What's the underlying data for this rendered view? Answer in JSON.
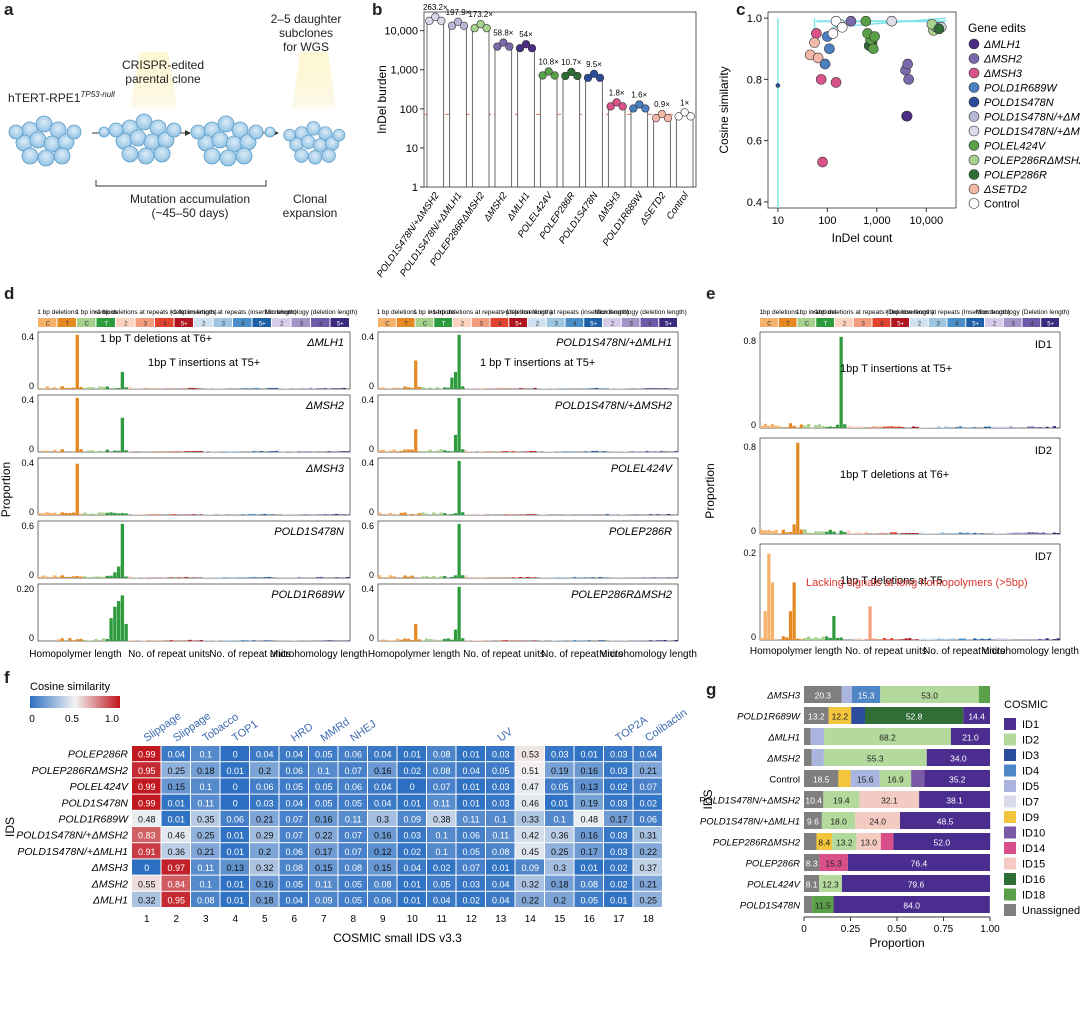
{
  "panels": {
    "a": "a",
    "b": "b",
    "c": "c",
    "d": "d",
    "e": "e",
    "f": "f",
    "g": "g"
  },
  "panel_a": {
    "cell_line": "hTERT-RPE1",
    "cell_line_sup": "TP53-null",
    "parental": [
      "CRISPR-edited",
      "parental clone"
    ],
    "subclones": [
      "2–5 daughter",
      "subclones",
      "for WGS"
    ],
    "accum": [
      "Mutation accumulation",
      "(~45–50 days)"
    ],
    "clonal": [
      "Clonal",
      "expansion"
    ]
  },
  "panel_b": {
    "ylabel": "InDel burden",
    "yticks": [
      "1",
      "10",
      "100",
      "1,000",
      "10,000"
    ],
    "bars": [
      {
        "label": "POLD1S478N/+ΔMSH2",
        "fold": "263.2×",
        "value": 20000,
        "color": "#d8d8e8"
      },
      {
        "label": "POLD1S478N/+ΔMLH1",
        "fold": "197.9×",
        "value": 15000,
        "color": "#b9b7d6"
      },
      {
        "label": "POLEP286RΔMSH2",
        "fold": "173.2×",
        "value": 13000,
        "color": "#a9d18e"
      },
      {
        "label": "ΔMSH2",
        "fold": "58.8×",
        "value": 4400,
        "color": "#7a6aac"
      },
      {
        "label": "ΔMLH1",
        "fold": "54×",
        "value": 4000,
        "color": "#4b2c84"
      },
      {
        "label": "POLEL424V",
        "fold": "10.8×",
        "value": 800,
        "color": "#5aa048"
      },
      {
        "label": "POLEP286R",
        "fold": "10.7×",
        "value": 780,
        "color": "#2f6f36"
      },
      {
        "label": "POLD1S478N",
        "fold": "9.5×",
        "value": 700,
        "color": "#2b4c9a"
      },
      {
        "label": "ΔMSH3",
        "fold": "1.8×",
        "value": 130,
        "color": "#d9538a"
      },
      {
        "label": "POLD1R689W",
        "fold": "1.6×",
        "value": 115,
        "color": "#4a7fc1"
      },
      {
        "label": "ΔSETD2",
        "fold": "0.9×",
        "value": 65,
        "color": "#f4b8a8"
      },
      {
        "label": "Control",
        "fold": "1×",
        "value": 72,
        "color": "#ffffff"
      }
    ]
  },
  "panel_c": {
    "ylabel": "Cosine similarity",
    "xlabel": "InDel count",
    "yticks": [
      "0.4",
      "0.6",
      "0.8",
      "1.0"
    ],
    "xticks": [
      "10",
      "100",
      "1,000",
      "10,000"
    ],
    "legend_title": "Gene edits",
    "legend": [
      {
        "label": "ΔMLH1",
        "color": "#4b2c84"
      },
      {
        "label": "ΔMSH2",
        "color": "#7a6aac"
      },
      {
        "label": "ΔMSH3",
        "color": "#d9538a"
      },
      {
        "label": "POLD1R689W",
        "color": "#4a7fc1"
      },
      {
        "label": "POLD1S478N",
        "color": "#2b4c9a"
      },
      {
        "label": "POLD1S478N/+ΔMLH1",
        "color": "#b9b7d6"
      },
      {
        "label": "POLD1S478N/+ΔMSH2",
        "color": "#dcdcea"
      },
      {
        "label": "POLEL424V",
        "color": "#5aa048"
      },
      {
        "label": "POLEP286RΔMSH2",
        "color": "#a9d18e"
      },
      {
        "label": "POLEP286R",
        "color": "#2f6f36"
      },
      {
        "label": "ΔSETD2",
        "color": "#f4b8a8"
      },
      {
        "label": "Control",
        "color": "#ffffff"
      }
    ]
  },
  "panel_d": {
    "headers": [
      "1 bp deletions",
      "1 bp insertions",
      ">1 bp deletions at repeats (deletion length)",
      ">1 bp insertions at repeats (insertion length)",
      "Microhomology (deletion length)"
    ],
    "ylabel": "Proportion",
    "xlabels": [
      "Homopolymer length",
      "No. of repeat units",
      "No. of repeat units",
      "Microhomology length"
    ],
    "left": [
      {
        "title": "ΔMLH1",
        "ymax": "0.4",
        "ann1": "1 bp T deletions at T6+",
        "ann2": "1bp T insertions at T5+"
      },
      {
        "title": "ΔMSH2",
        "ymax": "0.4"
      },
      {
        "title": "ΔMSH3",
        "ymax": "0.4"
      },
      {
        "title": "POLD1S478N",
        "ymax": "0.6"
      },
      {
        "title": "POLD1R689W",
        "ymax": "0.20"
      }
    ],
    "right": [
      {
        "title": "POLD1S478N/+ΔMLH1",
        "ymax": "0.4",
        "ann": "1 bp T insertions at T5+"
      },
      {
        "title": "POLD1S478N/+ΔMSH2",
        "ymax": "0.4"
      },
      {
        "title": "POLEL424V",
        "ymax": "0.4"
      },
      {
        "title": "POLEP286R",
        "ymax": "0.6"
      },
      {
        "title": "POLEP286RΔMSH2",
        "ymax": "0.4"
      }
    ]
  },
  "panel_e": {
    "headers": [
      "1bp deletions",
      "1bp insertions",
      ">1bp deletions at repeats (Deletion length)",
      ">1bp insertions at repeats (Insertion length)",
      "Microhomology (Deletion length)"
    ],
    "ylabel": "Proportion",
    "rows": [
      {
        "title": "ID1",
        "ymax": "0.8",
        "ann": "1bp T insertions at T5+"
      },
      {
        "title": "ID2",
        "ymax": "0.8",
        "ann": "1bp T deletions at T6+"
      },
      {
        "title": "ID7",
        "ymax": "0.2",
        "ann": "1bp T deletions at T5",
        "ann_red": "Lacking signals at long homopolymers (>5bp)"
      }
    ],
    "xlabels": [
      "Homopolymer length",
      "No. of repeat units",
      "No. of repeat units",
      "Microhomology length"
    ]
  },
  "panel_f": {
    "legend_title": "Cosine similarity",
    "legend_ticks": [
      "0",
      "0.5",
      "1.0"
    ],
    "ylabel": "IDS",
    "xlabel": "COSMIC small IDS v3.3",
    "top_labels": [
      {
        "label": "Slippage",
        "col": 1
      },
      {
        "label": "Slippage",
        "col": 2
      },
      {
        "label": "Tobacco",
        "col": 3
      },
      {
        "label": "TOP1",
        "col": 4
      },
      {
        "label": "HRD",
        "col": 6
      },
      {
        "label": "MMRd",
        "col": 7
      },
      {
        "label": "NHEJ",
        "col": 8
      },
      {
        "label": "UV",
        "col": 13
      },
      {
        "label": "TOP2A",
        "col": 17
      },
      {
        "label": "Colibactin",
        "col": 18
      }
    ],
    "rows": [
      {
        "label": "POLEP286R",
        "values": [
          0.99,
          0.04,
          0.1,
          0,
          0.04,
          0.04,
          0.05,
          0.06,
          0.04,
          0.01,
          0.08,
          0.01,
          0.03,
          0.53,
          0.03,
          0.01,
          0.03,
          0.04
        ]
      },
      {
        "label": "POLEP286RΔMSH2",
        "values": [
          0.95,
          0.25,
          0.18,
          0.01,
          0.2,
          0.06,
          0.1,
          0.07,
          0.16,
          0.02,
          0.08,
          0.04,
          0.05,
          0.51,
          0.19,
          0.16,
          0.03,
          0.21
        ]
      },
      {
        "label": "POLEL424V",
        "values": [
          0.99,
          0.15,
          0.1,
          0,
          0.06,
          0.05,
          0.05,
          0.06,
          0.04,
          0,
          0.07,
          0.01,
          0.03,
          0.47,
          0.05,
          0.13,
          0.02,
          0.07
        ]
      },
      {
        "label": "POLD1S478N",
        "values": [
          0.99,
          0.01,
          0.11,
          0,
          0.03,
          0.04,
          0.05,
          0.05,
          0.04,
          0.01,
          0.11,
          0.01,
          0.03,
          0.46,
          0.01,
          0.19,
          0.03,
          0.02
        ]
      },
      {
        "label": "POLD1R689W",
        "values": [
          0.48,
          0.01,
          0.35,
          0.06,
          0.21,
          0.07,
          0.16,
          0.11,
          0.3,
          0.09,
          0.38,
          0.11,
          0.1,
          0.33,
          0.1,
          0.48,
          0.17,
          0.06
        ]
      },
      {
        "label": "POLD1S478N/+ΔMSH2",
        "values": [
          0.83,
          0.46,
          0.25,
          0.01,
          0.29,
          0.07,
          0.22,
          0.07,
          0.16,
          0.03,
          0.1,
          0.06,
          0.11,
          0.42,
          0.36,
          0.16,
          0.03,
          0.31
        ]
      },
      {
        "label": "POLD1S478N/+ΔMLH1",
        "values": [
          0.91,
          0.36,
          0.21,
          0.01,
          0.2,
          0.06,
          0.17,
          0.07,
          0.12,
          0.02,
          0.1,
          0.05,
          0.08,
          0.45,
          0.25,
          0.17,
          0.03,
          0.22
        ]
      },
      {
        "label": "ΔMSH3",
        "values": [
          0,
          0.97,
          0.11,
          0.13,
          0.32,
          0.08,
          0.15,
          0.08,
          0.15,
          0.04,
          0.02,
          0.07,
          0.01,
          0.09,
          0.3,
          0.01,
          0.02,
          0.37
        ]
      },
      {
        "label": "ΔMSH2",
        "values": [
          0.55,
          0.84,
          0.1,
          0.01,
          0.16,
          0.05,
          0.11,
          0.05,
          0.08,
          0.01,
          0.05,
          0.03,
          0.04,
          0.32,
          0.18,
          0.08,
          0.02,
          0.21
        ]
      },
      {
        "label": "ΔMLH1",
        "values": [
          0.32,
          0.95,
          0.08,
          0.01,
          0.18,
          0.04,
          0.09,
          0.05,
          0.06,
          0.01,
          0.04,
          0.02,
          0.04,
          0.22,
          0.2,
          0.05,
          0.01,
          0.25
        ]
      }
    ],
    "xticks": [
      "1",
      "2",
      "3",
      "4",
      "5",
      "6",
      "7",
      "8",
      "9",
      "10",
      "11",
      "12",
      "13",
      "14",
      "15",
      "16",
      "17",
      "18"
    ]
  },
  "panel_g": {
    "ylabel": "IDS",
    "xlabel": "Proportion",
    "xticks": [
      "0",
      "0.25",
      "0.50",
      "0.75",
      "1.00"
    ],
    "legend_title": "COSMIC",
    "legend": [
      {
        "label": "ID1",
        "color": "#4b2c8f"
      },
      {
        "label": "ID2",
        "color": "#b3d99c"
      },
      {
        "label": "ID3",
        "color": "#2b4c9a"
      },
      {
        "label": "ID4",
        "color": "#4f86c6"
      },
      {
        "label": "ID5",
        "color": "#a9b4df"
      },
      {
        "label": "ID7",
        "color": "#d9dbeb"
      },
      {
        "label": "ID9",
        "color": "#f2c53d"
      },
      {
        "label": "ID10",
        "color": "#7a5aa6"
      },
      {
        "label": "ID14",
        "color": "#d94f8a"
      },
      {
        "label": "ID15",
        "color": "#f4cbc3"
      },
      {
        "label": "ID16",
        "color": "#2f6f36"
      },
      {
        "label": "ID18",
        "color": "#5aa048"
      },
      {
        "label": "Unassigned",
        "color": "#7f7f7f"
      }
    ],
    "rows": [
      {
        "label": "ΔMSH3",
        "segs": [
          {
            "id": "Unassigned",
            "v": 0.203,
            "t": "20.3"
          },
          {
            "id": "ID5",
            "v": 0.054,
            "t": "5.4"
          },
          {
            "id": "ID4",
            "v": 0.153,
            "t": "15.3"
          },
          {
            "id": "ID2",
            "v": 0.53,
            "t": "53.0"
          },
          {
            "id": "ID18",
            "v": 0.06,
            "t": "6.0"
          }
        ]
      },
      {
        "label": "POLD1R689W",
        "segs": [
          {
            "id": "Unassigned",
            "v": 0.132,
            "t": "13.2"
          },
          {
            "id": "ID9",
            "v": 0.122,
            "t": "12.2"
          },
          {
            "id": "ID3",
            "v": 0.074,
            "t": "7.4"
          },
          {
            "id": "ID16",
            "v": 0.528,
            "t": "52.8"
          },
          {
            "id": "ID1",
            "v": 0.144,
            "t": "14.4"
          }
        ]
      },
      {
        "label": "ΔMLH1",
        "segs": [
          {
            "id": "Unassigned",
            "v": 0.036,
            "t": "3.6"
          },
          {
            "id": "ID5",
            "v": 0.072,
            "t": "7.2"
          },
          {
            "id": "ID2",
            "v": 0.682,
            "t": "68.2"
          },
          {
            "id": "ID1",
            "v": 0.21,
            "t": "21.0"
          }
        ]
      },
      {
        "label": "ΔMSH2",
        "segs": [
          {
            "id": "Unassigned",
            "v": 0.042,
            "t": "4.2"
          },
          {
            "id": "ID5",
            "v": 0.065,
            "t": "6.5"
          },
          {
            "id": "ID2",
            "v": 0.553,
            "t": "55.3"
          },
          {
            "id": "ID1",
            "v": 0.34,
            "t": "34.0"
          }
        ]
      },
      {
        "label": "Control",
        "segs": [
          {
            "id": "Unassigned",
            "v": 0.185,
            "t": "18.5"
          },
          {
            "id": "ID9",
            "v": 0.066,
            "t": "6.6"
          },
          {
            "id": "ID5",
            "v": 0.156,
            "t": "15.6"
          },
          {
            "id": "ID2",
            "v": 0.169,
            "t": "16.9"
          },
          {
            "id": "ID10",
            "v": 0.072,
            "t": "7.2"
          },
          {
            "id": "ID1",
            "v": 0.352,
            "t": "35.2"
          }
        ]
      },
      {
        "label": "POLD1S478N/+ΔMSH2",
        "segs": [
          {
            "id": "Unassigned",
            "v": 0.104,
            "t": "10.4"
          },
          {
            "id": "ID2",
            "v": 0.194,
            "t": "19.4"
          },
          {
            "id": "ID15",
            "v": 0.321,
            "t": "32.1"
          },
          {
            "id": "ID1",
            "v": 0.381,
            "t": "38.1"
          }
        ]
      },
      {
        "label": "POLD1S478N/+ΔMLH1",
        "segs": [
          {
            "id": "Unassigned",
            "v": 0.096,
            "t": "9.6"
          },
          {
            "id": "ID2",
            "v": 0.18,
            "t": "18.0"
          },
          {
            "id": "ID15",
            "v": 0.24,
            "t": "24.0"
          },
          {
            "id": "ID1",
            "v": 0.485,
            "t": "48.5"
          }
        ]
      },
      {
        "label": "POLEP286RΔMSH2",
        "segs": [
          {
            "id": "Unassigned",
            "v": 0.067,
            "t": "6.7"
          },
          {
            "id": "ID9",
            "v": 0.084,
            "t": "8.4"
          },
          {
            "id": "ID2",
            "v": 0.132,
            "t": "13.2"
          },
          {
            "id": "ID15",
            "v": 0.13,
            "t": "13.0"
          },
          {
            "id": "ID14",
            "v": 0.068,
            "t": "6.8"
          },
          {
            "id": "ID1",
            "v": 0.52,
            "t": "52.0"
          }
        ]
      },
      {
        "label": "POLEP286R",
        "segs": [
          {
            "id": "Unassigned",
            "v": 0.083,
            "t": "8.3"
          },
          {
            "id": "ID14",
            "v": 0.153,
            "t": "15.3"
          },
          {
            "id": "ID1",
            "v": 0.764,
            "t": "76.4"
          }
        ]
      },
      {
        "label": "POLEL424V",
        "segs": [
          {
            "id": "Unassigned",
            "v": 0.081,
            "t": "8.1"
          },
          {
            "id": "ID2",
            "v": 0.123,
            "t": "12.3"
          },
          {
            "id": "ID1",
            "v": 0.796,
            "t": "79.6"
          }
        ]
      },
      {
        "label": "POLD1S478N",
        "segs": [
          {
            "id": "Unassigned",
            "v": 0.044,
            "t": "4.4"
          },
          {
            "id": "ID18",
            "v": 0.115,
            "t": "11.5"
          },
          {
            "id": "ID1",
            "v": 0.84,
            "t": "84.0"
          }
        ]
      }
    ]
  },
  "chart_data": [
    {
      "type": "bar",
      "title": "",
      "ylabel": "InDel burden",
      "yscale": "log",
      "ylim": [
        1,
        30000
      ],
      "categories": [
        "POLD1S478N/+ΔMSH2",
        "POLD1S478N/+ΔMLH1",
        "POLEP286RΔMSH2",
        "ΔMSH2",
        "ΔMLH1",
        "POLEL424V",
        "POLEP286R",
        "POLD1S478N",
        "ΔMSH3",
        "POLD1R689W",
        "ΔSETD2",
        "Control"
      ],
      "values": [
        20000,
        15000,
        13000,
        4400,
        4000,
        800,
        780,
        700,
        130,
        115,
        65,
        72
      ]
    },
    {
      "type": "heatmap",
      "title": "",
      "xlabel": "COSMIC small IDS v3.3",
      "ylabel": "IDS"
    },
    {
      "type": "bar",
      "title": "",
      "xlabel": "Proportion",
      "ylabel": "IDS",
      "stacked": true
    }
  ]
}
